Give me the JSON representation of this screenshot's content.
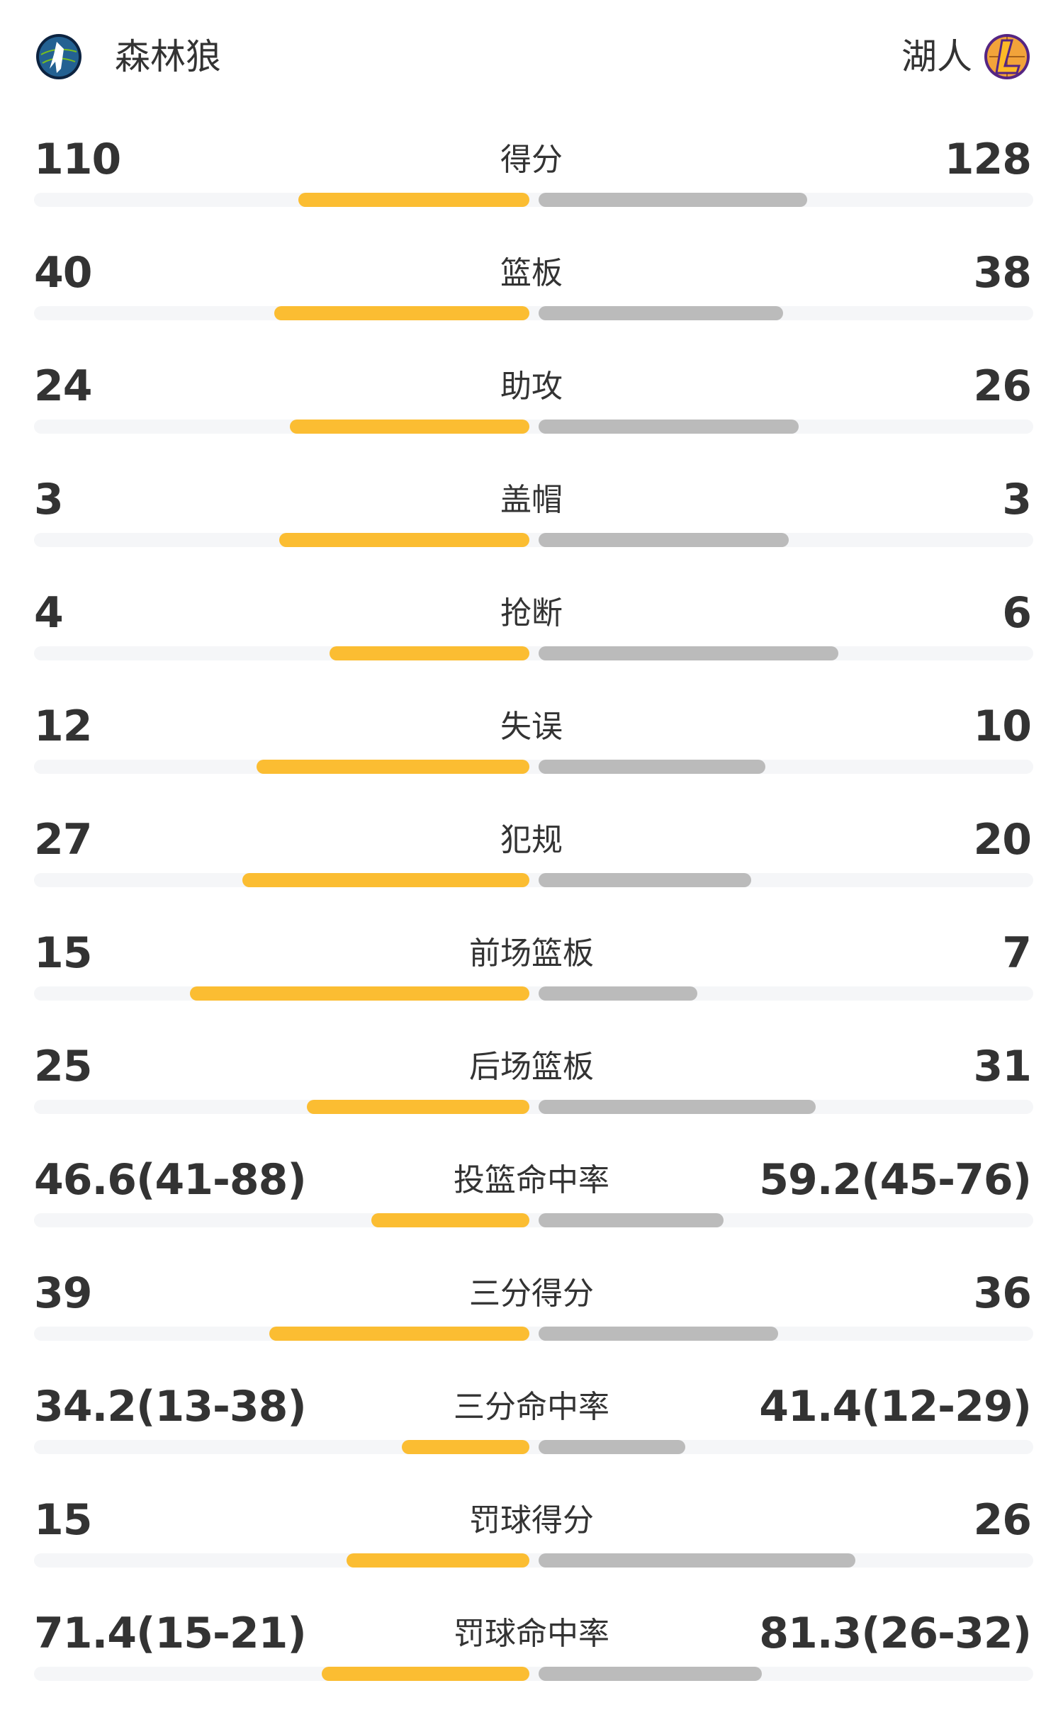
{
  "header": {
    "home": {
      "name": "森林狼",
      "logo": "timberwolves-logo"
    },
    "away": {
      "name": "湖人",
      "logo": "lakers-logo"
    }
  },
  "colors": {
    "home_bar": "#FBBD32",
    "away_bar": "#BBBBBB",
    "track": "#F5F6F8",
    "text": "#333333"
  },
  "stats": [
    {
      "label": "得分",
      "home": "110",
      "away": "128",
      "home_fill": 0.463,
      "away_fill": 0.537
    },
    {
      "label": "篮板",
      "home": "40",
      "away": "38",
      "home_fill": 0.511,
      "away_fill": 0.489
    },
    {
      "label": "助攻",
      "home": "24",
      "away": "26",
      "home_fill": 0.48,
      "away_fill": 0.52
    },
    {
      "label": "盖帽",
      "home": "3",
      "away": "3",
      "home_fill": 0.5,
      "away_fill": 0.5
    },
    {
      "label": "抢断",
      "home": "4",
      "away": "6",
      "home_fill": 0.4,
      "away_fill": 0.6
    },
    {
      "label": "失误",
      "home": "12",
      "away": "10",
      "home_fill": 0.546,
      "away_fill": 0.454
    },
    {
      "label": "犯规",
      "home": "27",
      "away": "20",
      "home_fill": 0.575,
      "away_fill": 0.425
    },
    {
      "label": "前场篮板",
      "home": "15",
      "away": "7",
      "home_fill": 0.68,
      "away_fill": 0.318
    },
    {
      "label": "后场篮板",
      "home": "25",
      "away": "31",
      "home_fill": 0.445,
      "away_fill": 0.555
    },
    {
      "label": "投篮命中率",
      "home": "46.6(41-88)",
      "away": "59.2(45-76)",
      "home_fill": 0.317,
      "away_fill": 0.37
    },
    {
      "label": "三分得分",
      "home": "39",
      "away": "36",
      "home_fill": 0.52,
      "away_fill": 0.48
    },
    {
      "label": "三分命中率",
      "home": "34.2(13-38)",
      "away": "41.4(12-29)",
      "home_fill": 0.256,
      "away_fill": 0.293
    },
    {
      "label": "罚球得分",
      "home": "15",
      "away": "26",
      "home_fill": 0.366,
      "away_fill": 0.634
    },
    {
      "label": "罚球命中率",
      "home": "71.4(15-21)",
      "away": "81.3(26-32)",
      "home_fill": 0.416,
      "away_fill": 0.447
    }
  ]
}
